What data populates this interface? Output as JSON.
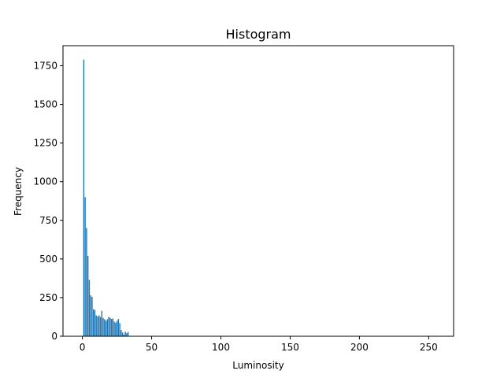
{
  "chart_data": {
    "type": "bar",
    "title": "Histogram",
    "xlabel": "Luminosity",
    "ylabel": "Frequency",
    "xlim": [
      -14,
      268
    ],
    "ylim": [
      0,
      1880
    ],
    "xticks": [
      0,
      50,
      100,
      150,
      200,
      250
    ],
    "yticks": [
      0,
      250,
      500,
      750,
      1000,
      1250,
      1500,
      1750
    ],
    "bar_width": 0.8,
    "color": "#1f77b4",
    "grid": false,
    "x": [
      1,
      2,
      3,
      4,
      5,
      6,
      7,
      8,
      9,
      10,
      11,
      12,
      13,
      14,
      15,
      16,
      17,
      18,
      19,
      20,
      21,
      22,
      23,
      24,
      25,
      26,
      27,
      28,
      29,
      30,
      31,
      32,
      33,
      34,
      35
    ],
    "values": [
      1790,
      900,
      700,
      520,
      365,
      265,
      255,
      175,
      170,
      135,
      128,
      135,
      125,
      165,
      118,
      110,
      100,
      110,
      125,
      120,
      112,
      115,
      95,
      88,
      100,
      112,
      85,
      40,
      25,
      12,
      30,
      20,
      28,
      0,
      0
    ]
  }
}
